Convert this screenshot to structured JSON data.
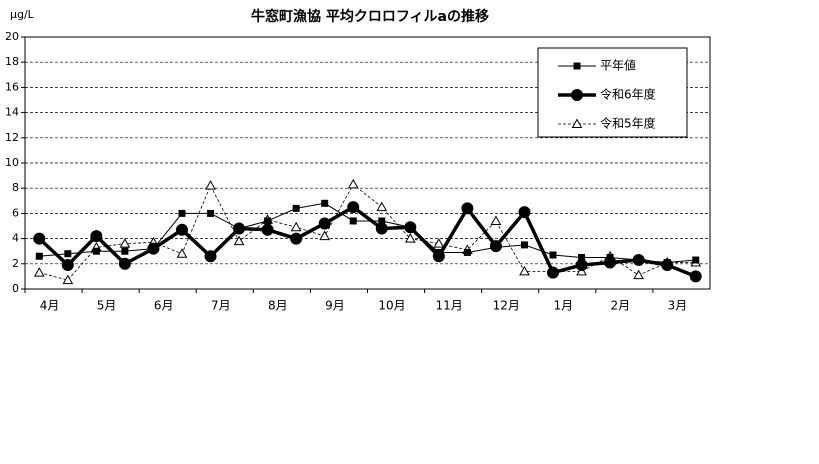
{
  "chart_data": {
    "type": "line",
    "title": "牛窓町漁協  平均クロロフィルaの推移",
    "y_unit": "μg/L",
    "categories": [
      "4月",
      null,
      "5月",
      null,
      "6月",
      null,
      "7月",
      null,
      "8月",
      null,
      "9月",
      null,
      "10月",
      null,
      "11月",
      null,
      "12月",
      null,
      "1月",
      null,
      "2月",
      null,
      "3月",
      null
    ],
    "series": [
      {
        "name": "平年値",
        "color": "#000000",
        "marker": "square",
        "width": 1,
        "dash": "none",
        "values": [
          2.6,
          2.8,
          3.0,
          3.0,
          3.2,
          6.0,
          6.0,
          4.8,
          5.4,
          6.4,
          6.8,
          5.4,
          5.4,
          4.9,
          2.9,
          2.9,
          3.3,
          3.5,
          2.7,
          2.5,
          2.5,
          2.3,
          2.1,
          2.3
        ]
      },
      {
        "name": "令和6年度",
        "color": "#000000",
        "marker": "circle",
        "width": 3.5,
        "dash": "none",
        "values": [
          4.0,
          1.9,
          4.2,
          2.0,
          3.2,
          4.7,
          2.6,
          4.8,
          4.7,
          4.0,
          5.2,
          6.5,
          4.8,
          4.9,
          2.6,
          6.4,
          3.4,
          6.1,
          1.3,
          1.9,
          2.1,
          2.3,
          1.9,
          1.0
        ]
      },
      {
        "name": "令和5年度",
        "color": "#000000",
        "marker": "triangle",
        "width": 0.8,
        "dash": "3,2",
        "values": [
          1.3,
          0.7,
          3.3,
          3.6,
          3.7,
          2.8,
          8.2,
          3.8,
          5.5,
          4.9,
          4.2,
          8.3,
          6.5,
          4.0,
          3.6,
          3.1,
          5.4,
          1.4,
          1.4,
          1.4,
          2.6,
          1.1,
          2.1,
          2.1
        ]
      }
    ],
    "ylim": [
      0,
      20
    ],
    "yticks": [
      0,
      2,
      4,
      6,
      8,
      10,
      12,
      14,
      16,
      18,
      20
    ],
    "grid": true,
    "legend": "upper right"
  }
}
